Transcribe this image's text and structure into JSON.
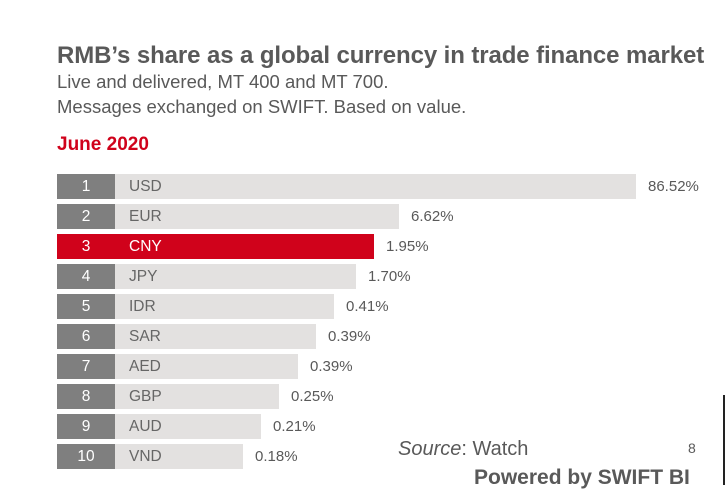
{
  "header": {
    "title": "RMB’s share as a global currency in trade finance market",
    "subtitle_line1": "Live and delivered,  MT 400 and MT 700.",
    "subtitle_line2": "Messages exchanged on SWIFT. Based on value.",
    "period": "June 2020"
  },
  "colors": {
    "highlight": "#d0021b",
    "bar": "#e3e1e0",
    "rank_box": "#7f7f7f"
  },
  "chart_data": {
    "type": "bar",
    "orientation": "horizontal",
    "categories": [
      "USD",
      "EUR",
      "CNY",
      "JPY",
      "IDR",
      "SAR",
      "AED",
      "GBP",
      "AUD",
      "VND"
    ],
    "ranks": [
      "1",
      "2",
      "3",
      "4",
      "5",
      "6",
      "7",
      "8",
      "9",
      "10"
    ],
    "values": [
      86.52,
      6.62,
      1.95,
      1.7,
      0.41,
      0.39,
      0.39,
      0.25,
      0.21,
      0.18
    ],
    "value_labels": [
      "86.52%",
      "6.62%",
      "1.95%",
      "1.70%",
      "0.41%",
      "0.39%",
      "0.39%",
      "0.25%",
      "0.21%",
      "0.18%"
    ],
    "highlighted_category": "CNY",
    "scale": "non-linear (display bars)",
    "title": "",
    "xlabel": "",
    "ylabel": ""
  },
  "footer": {
    "source_label": "Source",
    "source_text": ": Watch",
    "page_number": "8",
    "powered_by": "Powered by SWIFT BI"
  }
}
